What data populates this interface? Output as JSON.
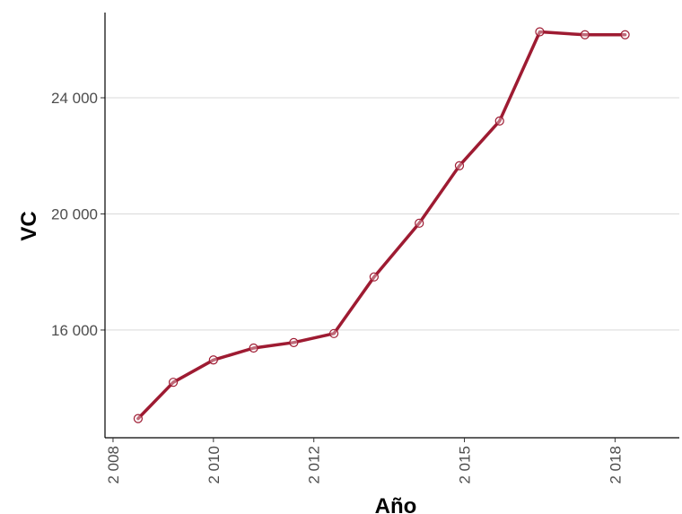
{
  "chart_data": {
    "type": "line",
    "title": "",
    "xlabel": "Año",
    "ylabel": "VC",
    "x_ticks": [
      {
        "value": 2008,
        "label": "2 008"
      },
      {
        "value": 2010,
        "label": "2 010"
      },
      {
        "value": 2012,
        "label": "2 012"
      },
      {
        "value": 2015,
        "label": "2 015"
      },
      {
        "value": 2018,
        "label": "2 018"
      }
    ],
    "y_ticks": [
      {
        "value": 16000,
        "label": "16 000"
      },
      {
        "value": 20000,
        "label": "20 000"
      },
      {
        "value": 24000,
        "label": "24 000"
      }
    ],
    "xlim": [
      2007.84,
      2019.28
    ],
    "ylim": [
      12290,
      26750
    ],
    "grid": {
      "horizontal": true,
      "vertical": false
    },
    "series": [
      {
        "color": "#9e1b32",
        "x": [
          2008.5,
          2009.2,
          2010.0,
          2010.8,
          2011.6,
          2012.4,
          2013.2,
          2014.1,
          2014.9,
          2015.7,
          2016.5,
          2017.4,
          2018.2
        ],
        "y": [
          12950,
          14200,
          14970,
          15380,
          15570,
          15880,
          17830,
          19680,
          21660,
          23200,
          26270,
          26170,
          26170
        ]
      }
    ]
  }
}
